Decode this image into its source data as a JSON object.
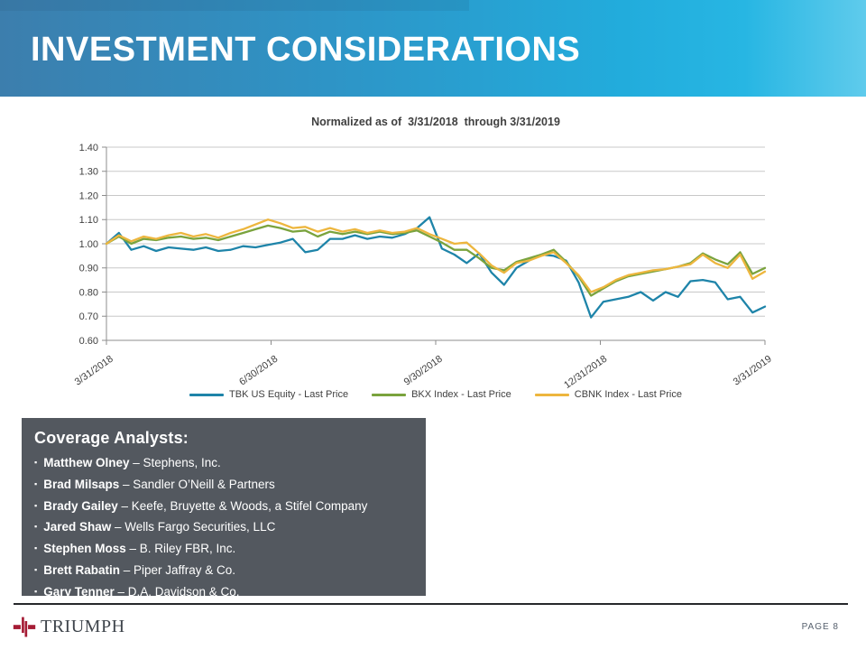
{
  "slide": {
    "title": "INVESTMENT CONSIDERATIONS",
    "brand": "TRIUMPH",
    "page_label": "PAGE 8"
  },
  "chart_data": {
    "type": "line",
    "title": "Normalized as of  3/31/2018  through 3/31/2019",
    "xlabel": "",
    "ylabel": "",
    "x_tick_labels": [
      "3/31/2018",
      "6/30/2018",
      "9/30/2018",
      "12/31/2018",
      "3/31/2019"
    ],
    "ylim": [
      0.6,
      1.4
    ],
    "y_tick_step": 0.1,
    "grid": true,
    "legend_position": "bottom",
    "series": [
      {
        "name": "TBK US Equity - Last Price",
        "color": "#1E84A9",
        "values": [
          1.0,
          1.045,
          0.975,
          0.99,
          0.97,
          0.985,
          0.98,
          0.975,
          0.985,
          0.97,
          0.975,
          0.99,
          0.985,
          0.995,
          1.005,
          1.02,
          0.965,
          0.975,
          1.02,
          1.02,
          1.035,
          1.02,
          1.03,
          1.025,
          1.04,
          1.065,
          1.11,
          0.98,
          0.955,
          0.92,
          0.96,
          0.88,
          0.83,
          0.9,
          0.93,
          0.955,
          0.95,
          0.93,
          0.84,
          0.695,
          0.76,
          0.77,
          0.78,
          0.8,
          0.765,
          0.8,
          0.78,
          0.845,
          0.85,
          0.84,
          0.77,
          0.78,
          0.715,
          0.74
        ]
      },
      {
        "name": "BKX Index - Last Price",
        "color": "#7AA33D",
        "values": [
          1.0,
          1.03,
          1.0,
          1.02,
          1.015,
          1.025,
          1.03,
          1.02,
          1.025,
          1.015,
          1.03,
          1.045,
          1.06,
          1.075,
          1.065,
          1.05,
          1.055,
          1.03,
          1.05,
          1.04,
          1.05,
          1.04,
          1.05,
          1.04,
          1.045,
          1.055,
          1.03,
          1.005,
          0.975,
          0.975,
          0.94,
          0.9,
          0.89,
          0.925,
          0.94,
          0.955,
          0.975,
          0.925,
          0.865,
          0.785,
          0.815,
          0.845,
          0.865,
          0.875,
          0.885,
          0.895,
          0.905,
          0.92,
          0.96,
          0.935,
          0.915,
          0.965,
          0.875,
          0.9
        ]
      },
      {
        "name": "CBNK Index - Last Price",
        "color": "#EDB63E",
        "values": [
          1.0,
          1.035,
          1.01,
          1.03,
          1.02,
          1.035,
          1.045,
          1.03,
          1.04,
          1.025,
          1.045,
          1.06,
          1.08,
          1.1,
          1.085,
          1.065,
          1.07,
          1.05,
          1.065,
          1.05,
          1.06,
          1.045,
          1.055,
          1.045,
          1.05,
          1.065,
          1.04,
          1.02,
          1.0,
          1.005,
          0.96,
          0.91,
          0.88,
          0.92,
          0.93,
          0.95,
          0.965,
          0.92,
          0.87,
          0.8,
          0.82,
          0.85,
          0.87,
          0.88,
          0.89,
          0.895,
          0.905,
          0.915,
          0.955,
          0.92,
          0.9,
          0.955,
          0.855,
          0.885
        ]
      }
    ]
  },
  "analysts": {
    "heading": "Coverage Analysts:",
    "separator": "–",
    "items": [
      {
        "name": "Matthew Olney",
        "firm": "Stephens, Inc."
      },
      {
        "name": "Brad Milsaps",
        "firm": "Sandler O’Neill & Partners"
      },
      {
        "name": "Brady Gailey",
        "firm": "Keefe, Bruyette & Woods, a Stifel Company"
      },
      {
        "name": "Jared Shaw",
        "firm": "Wells Fargo Securities, LLC"
      },
      {
        "name": "Stephen Moss",
        "firm": "B. Riley FBR, Inc."
      },
      {
        "name": "Brett Rabatin",
        "firm": "Piper Jaffray & Co."
      },
      {
        "name": "Gary Tenner",
        "firm": "D.A. Davidson & Co."
      }
    ]
  }
}
